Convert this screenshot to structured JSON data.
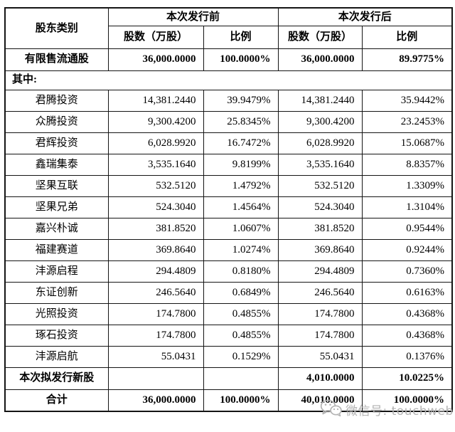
{
  "table": {
    "header": {
      "col_shareholder": "股东类别",
      "group_before": "本次发行前",
      "group_after": "本次发行后",
      "col_shares_before": "股数（万股）",
      "col_ratio_before": "比例",
      "col_shares_after": "股数（万股）",
      "col_ratio_after": "比例"
    },
    "rows": [
      {
        "type": "bold",
        "label": "有限售流通股",
        "cells": [
          "36,000.0000",
          "100.0000%",
          "36,000.0000",
          "89.9775%"
        ]
      },
      {
        "type": "section",
        "label": "其中:",
        "cells": []
      },
      {
        "type": "normal",
        "label": "君腾投资",
        "cells": [
          "14,381.2440",
          "39.9479%",
          "14,381.2440",
          "35.9442%"
        ]
      },
      {
        "type": "normal",
        "label": "众腾投资",
        "cells": [
          "9,300.4200",
          "25.8345%",
          "9,300.4200",
          "23.2453%"
        ]
      },
      {
        "type": "normal",
        "label": "君辉投资",
        "cells": [
          "6,028.9920",
          "16.7472%",
          "6,028.9920",
          "15.0687%"
        ]
      },
      {
        "type": "normal",
        "label": "鑫瑞集泰",
        "cells": [
          "3,535.1640",
          "9.8199%",
          "3,535.1640",
          "8.8357%"
        ]
      },
      {
        "type": "normal",
        "label": "坚果互联",
        "cells": [
          "532.5120",
          "1.4792%",
          "532.5120",
          "1.3309%"
        ]
      },
      {
        "type": "normal",
        "label": "坚果兄弟",
        "cells": [
          "524.3040",
          "1.4564%",
          "524.3040",
          "1.3104%"
        ]
      },
      {
        "type": "normal",
        "label": "嘉兴朴诚",
        "cells": [
          "381.8520",
          "1.0607%",
          "381.8520",
          "0.9544%"
        ]
      },
      {
        "type": "normal",
        "label": "福建赛道",
        "cells": [
          "369.8640",
          "1.0274%",
          "369.8640",
          "0.9244%"
        ]
      },
      {
        "type": "normal",
        "label": "沣源启程",
        "cells": [
          "294.4809",
          "0.8180%",
          "294.4809",
          "0.7360%"
        ]
      },
      {
        "type": "normal",
        "label": "东证创新",
        "cells": [
          "246.5640",
          "0.6849%",
          "246.5640",
          "0.6163%"
        ]
      },
      {
        "type": "normal",
        "label": "光照投资",
        "cells": [
          "174.7800",
          "0.4855%",
          "174.7800",
          "0.4368%"
        ]
      },
      {
        "type": "normal",
        "label": "琢石投资",
        "cells": [
          "174.7800",
          "0.4855%",
          "174.7800",
          "0.4368%"
        ]
      },
      {
        "type": "normal",
        "label": "沣源启航",
        "cells": [
          "55.0431",
          "0.1529%",
          "55.0431",
          "0.1376%"
        ]
      },
      {
        "type": "bold",
        "label": "本次拟发行新股",
        "cells": [
          "",
          "",
          "4,010.0000",
          "10.0225%"
        ]
      },
      {
        "type": "bold",
        "label": "合计",
        "cells": [
          "36,000.0000",
          "100.0000%",
          "40,010.0000",
          "100.0000%"
        ]
      }
    ]
  },
  "watermark": {
    "icon": "wechat-icon",
    "text": "微信号: touchweb",
    "color": "#b3b3b3"
  },
  "colors": {
    "border": "#141414",
    "text": "#000000",
    "background": "#ffffff"
  }
}
